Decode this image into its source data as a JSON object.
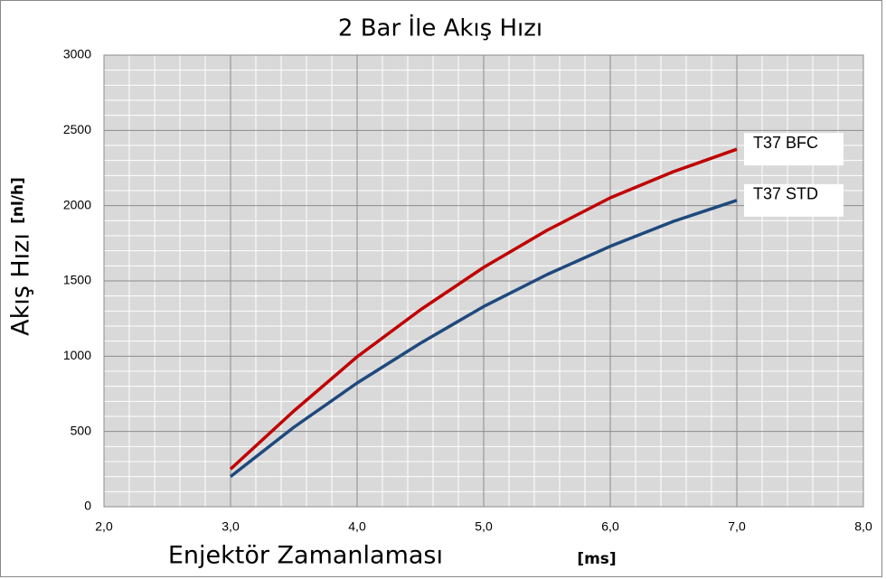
{
  "chart_data": {
    "type": "line",
    "title": "2 Bar İle Akış Hızı",
    "xlabel": "Enjektör Zamanlaması",
    "xlabel_unit": "[ms]",
    "ylabel": "Akış Hızı",
    "ylabel_unit": "[nl/h]",
    "x": [
      3.0,
      3.5,
      4.0,
      4.5,
      5.0,
      5.5,
      6.0,
      6.5,
      7.0
    ],
    "series": [
      {
        "name": "T37 BFC",
        "color": "#c00000",
        "values": [
          250,
          636,
          996,
          1308,
          1590,
          1836,
          2052,
          2226,
          2375
        ]
      },
      {
        "name": "T37 STD",
        "color": "#1f497d",
        "values": [
          200,
          528,
          822,
          1086,
          1330,
          1542,
          1730,
          1896,
          2035
        ]
      }
    ],
    "xlim": [
      2.0,
      8.0
    ],
    "xticks": [
      {
        "value": 2,
        "label": "2,0"
      },
      {
        "value": 3,
        "label": "3,0"
      },
      {
        "value": 4,
        "label": "4,0"
      },
      {
        "value": 5,
        "label": "5,0"
      },
      {
        "value": 6,
        "label": "6,0"
      },
      {
        "value": 7,
        "label": "7,0"
      },
      {
        "value": 8,
        "label": "8,0"
      }
    ],
    "ylim": [
      0,
      3000
    ],
    "yticks": [
      0,
      500,
      1000,
      1500,
      2000,
      2500,
      3000
    ],
    "grid": true,
    "minor_grid": true,
    "plot_background": "#d9d9d9"
  }
}
